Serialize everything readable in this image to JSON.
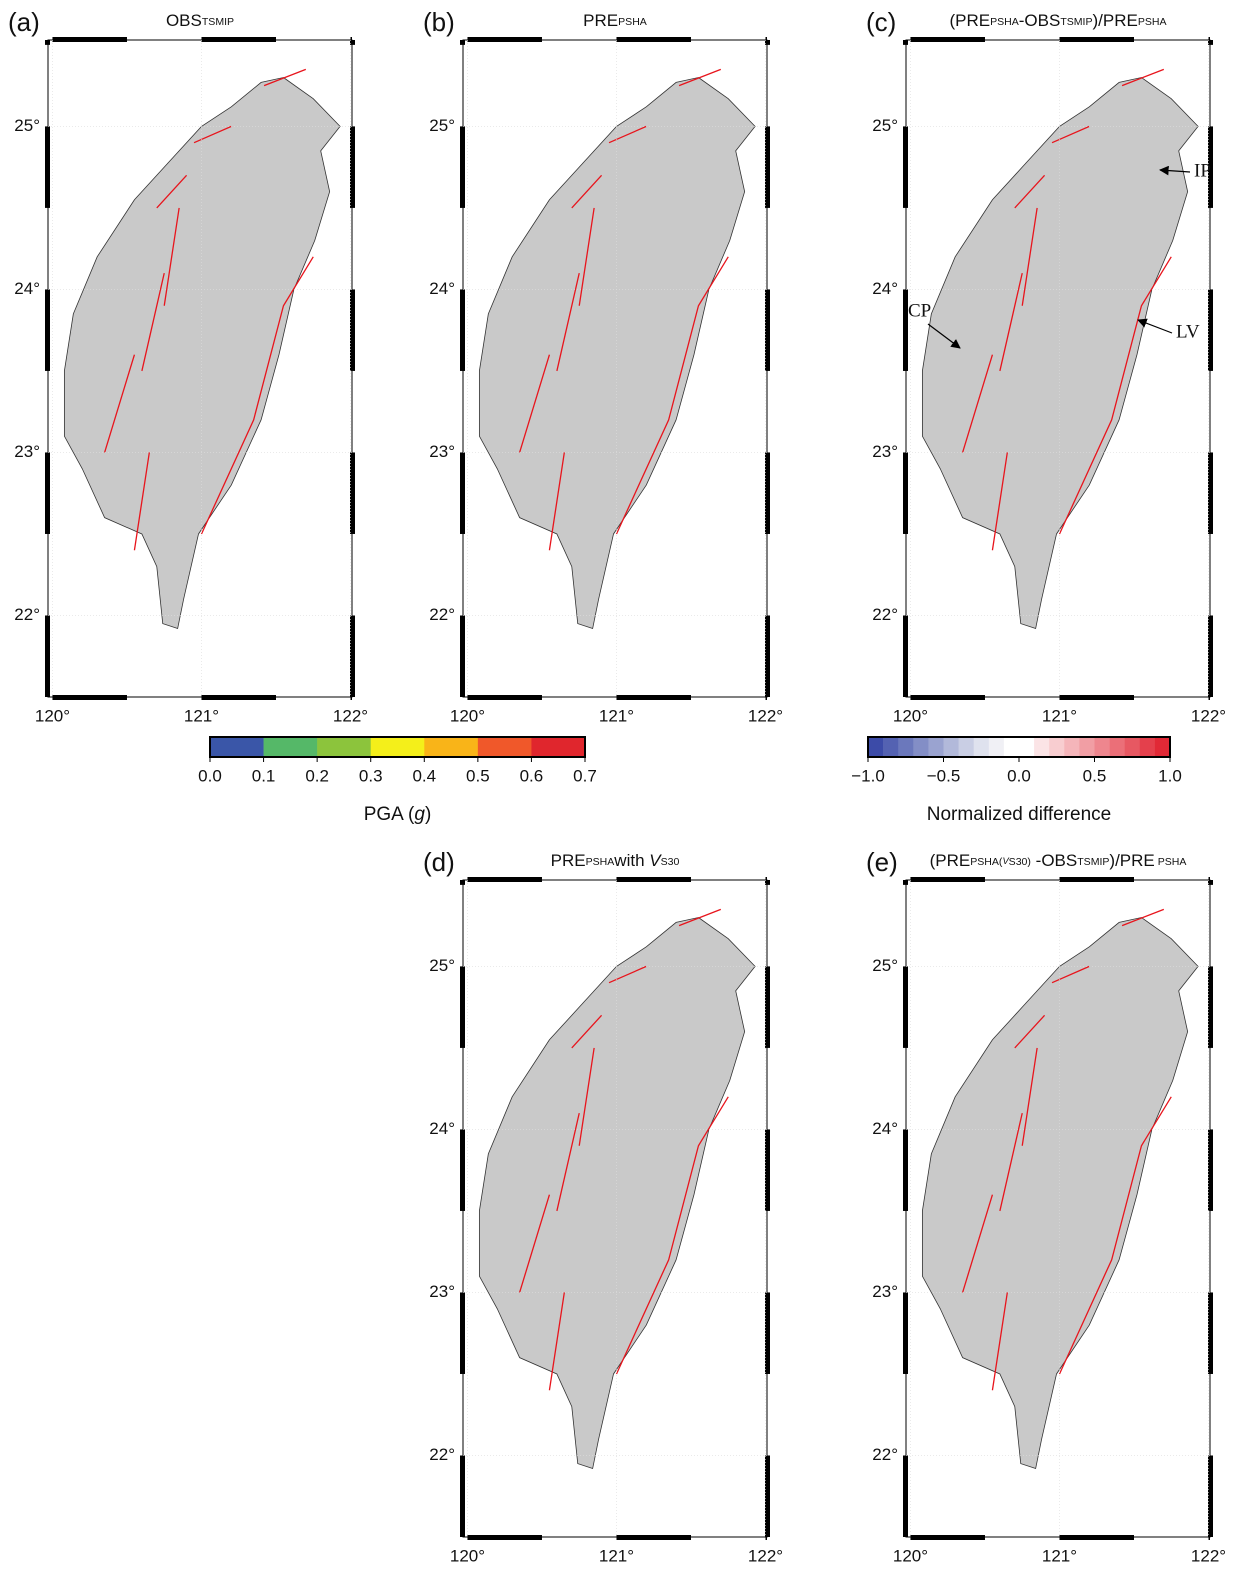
{
  "panels": [
    {
      "label": "(a)",
      "title": [
        {
          "text": "OBS"
        },
        {
          "sub": "TSMIP"
        }
      ]
    },
    {
      "label": "(b)",
      "title": [
        {
          "text": "PRE"
        },
        {
          "sub": "PSHA"
        }
      ]
    },
    {
      "label": "(c)",
      "title": [
        {
          "text": "(PRE"
        },
        {
          "sub": "PSHA"
        },
        {
          "text": "-OBS"
        },
        {
          "sub": "TSMIP"
        },
        {
          "text": ")/PRE"
        },
        {
          "sub": "PSHA"
        }
      ],
      "annotations": [
        "IP",
        "CP",
        "LV"
      ]
    },
    {
      "label": "(d)",
      "title": [
        {
          "text": "PRE"
        },
        {
          "sub": "PSHA"
        },
        {
          "text": "with "
        },
        {
          "italic": "V"
        },
        {
          "sub": "S30"
        }
      ]
    },
    {
      "label": "(e)",
      "title": [
        {
          "text": "(PRE"
        },
        {
          "sub": "PSHA("
        },
        {
          "italic_sub": "V"
        },
        {
          "sub": "S30"
        },
        {
          "sub": ")"
        },
        {
          "text": " -OBS"
        },
        {
          "sub": "TSMIP"
        },
        {
          "text": ")/PRE"
        },
        {
          "sub": " PSHA"
        }
      ]
    }
  ],
  "map": {
    "xlim": [
      119.97,
      122.01
    ],
    "ylim": [
      21.5,
      25.53
    ],
    "xticks": [
      {
        "value": 120,
        "label": "120°"
      },
      {
        "value": 121,
        "label": "121°"
      },
      {
        "value": 122,
        "label": "122°"
      }
    ],
    "yticks": [
      {
        "value": 22,
        "label": "22°"
      },
      {
        "value": 23,
        "label": "23°"
      },
      {
        "value": 24,
        "label": "24°"
      },
      {
        "value": 25,
        "label": "25°"
      }
    ]
  },
  "colorbars": [
    {
      "title": [
        {
          "text": "PGA ("
        },
        {
          "italic": "g"
        },
        {
          "text": ")"
        }
      ],
      "lim": [
        0,
        0.7
      ],
      "colors": [
        "#3a56a8",
        "#55b868",
        "#8cc43c",
        "#f4ef1a",
        "#f9b418",
        "#f0582a",
        "#e0262d"
      ],
      "ticks": [
        {
          "value": 0,
          "label": "0.0"
        },
        {
          "value": 0.1,
          "label": "0.1"
        },
        {
          "value": 0.2,
          "label": "0.2"
        },
        {
          "value": 0.3,
          "label": "0.3"
        },
        {
          "value": 0.4,
          "label": "0.4"
        },
        {
          "value": 0.5,
          "label": "0.5"
        },
        {
          "value": 0.6,
          "label": "0.6"
        },
        {
          "value": 0.7,
          "label": "0.7"
        }
      ]
    },
    {
      "title": [
        {
          "text": "Normalized difference"
        }
      ],
      "lim": [
        -1,
        1
      ],
      "colors": [
        "#3c4ba8",
        "#5462b2",
        "#6b78bc",
        "#838ec6",
        "#9aa3d0",
        "#b2b9da",
        "#c9cee4",
        "#dfe2ee",
        "#f0f0f5",
        "#ffffff",
        "#ffffff",
        "#fbe4e6",
        "#f8cdd0",
        "#f5b5ba",
        "#f19ea4",
        "#ee868e",
        "#eb6f78",
        "#e75862",
        "#e4404c",
        "#e12936"
      ],
      "ticks": [
        {
          "value": -1,
          "label": "−1.0"
        },
        {
          "value": -0.5,
          "label": "−0.5"
        },
        {
          "value": 0,
          "label": "0.0"
        },
        {
          "value": 0.5,
          "label": "0.5"
        },
        {
          "value": 1,
          "label": "1.0"
        }
      ]
    }
  ]
}
